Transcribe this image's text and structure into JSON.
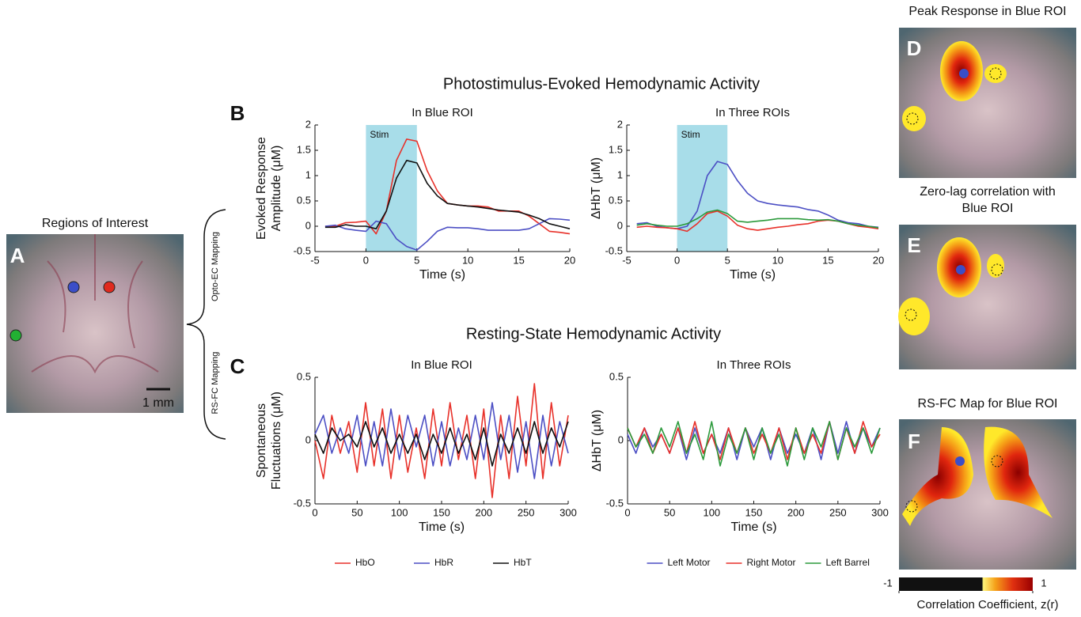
{
  "figure": {
    "evoked_heading": "Photostimulus-Evoked Hemodynamic Activity",
    "resting_heading": "Resting-State Hemodynamic Activity",
    "panel_a": "A",
    "panel_b": "B",
    "panel_c": "C",
    "panel_d": "D",
    "panel_e": "E",
    "panel_f": "F",
    "roi_title": "Regions of Interest",
    "scale": "1 mm",
    "opto_label": "Opto-EC Mapping",
    "rs_label": "RS-FC Mapping",
    "d_title": "Peak Response in Blue ROI",
    "e_title": [
      "Zero-lag correlation with",
      "Blue ROI"
    ],
    "f_title": "RS-FC Map for Blue ROI",
    "colorbar": {
      "label": "Correlation Coefficient, z(r)",
      "lim": [
        -1,
        1
      ],
      "ticks": [
        -1,
        1
      ]
    }
  },
  "chart_data": [
    {
      "type": "line",
      "title": "In Blue ROI",
      "xlabel": "Time (s)",
      "ylabel": [
        "Evoked Response",
        "Amplitude (μM)"
      ],
      "x": [
        -4,
        -3,
        -2,
        -1,
        0,
        1,
        2,
        3,
        4,
        5,
        6,
        7,
        8,
        9,
        10,
        11,
        12,
        13,
        14,
        15,
        16,
        17,
        18,
        19,
        20
      ],
      "xlim": [
        -5,
        20
      ],
      "xticks": [
        -5,
        0,
        5,
        10,
        15,
        20
      ],
      "ylim": [
        -0.5,
        2
      ],
      "yticks": [
        -0.5,
        0,
        0.5,
        1,
        1.5,
        2
      ],
      "shade": {
        "range": [
          0,
          5
        ],
        "label": "Stim",
        "color": "#a8dde9"
      },
      "series": [
        {
          "name": "HbO",
          "color": "#e8312a",
          "values": [
            0,
            0,
            0.07,
            0.08,
            0.1,
            -0.15,
            0.3,
            1.3,
            1.72,
            1.68,
            1.1,
            0.7,
            0.45,
            0.42,
            0.4,
            0.4,
            0.38,
            0.3,
            0.3,
            0.3,
            0.2,
            0.05,
            -0.1,
            -0.12,
            -0.15
          ]
        },
        {
          "name": "HbR",
          "color": "#4c4fc4",
          "values": [
            0,
            0.02,
            -0.05,
            -0.08,
            -0.1,
            0.1,
            0.05,
            -0.25,
            -0.4,
            -0.47,
            -0.3,
            -0.1,
            -0.02,
            -0.03,
            -0.03,
            -0.05,
            -0.08,
            -0.08,
            -0.08,
            -0.08,
            -0.05,
            0.05,
            0.15,
            0.14,
            0.12
          ]
        },
        {
          "name": "HbT",
          "color": "#111111",
          "values": [
            -0.02,
            -0.02,
            0.03,
            0,
            0,
            -0.05,
            0.3,
            0.95,
            1.3,
            1.25,
            0.85,
            0.6,
            0.45,
            0.42,
            0.4,
            0.38,
            0.35,
            0.32,
            0.3,
            0.28,
            0.22,
            0.15,
            0.05,
            0,
            -0.05
          ]
        }
      ],
      "legend": false
    },
    {
      "type": "line",
      "title": "In Three ROIs",
      "xlabel": "Time (s)",
      "ylabel": [
        "ΔHbT (μM)"
      ],
      "x": [
        -4,
        -3,
        -2,
        -1,
        0,
        1,
        2,
        3,
        4,
        5,
        6,
        7,
        8,
        9,
        10,
        11,
        12,
        13,
        14,
        15,
        16,
        17,
        18,
        19,
        20
      ],
      "xlim": [
        -5,
        20
      ],
      "xticks": [
        -5,
        0,
        5,
        10,
        15,
        20
      ],
      "ylim": [
        -0.5,
        2
      ],
      "yticks": [
        -0.5,
        0,
        0.5,
        1,
        1.5,
        2
      ],
      "shade": {
        "range": [
          0,
          5
        ],
        "label": "Stim",
        "color": "#a8dde9"
      },
      "series": [
        {
          "name": "Left Motor",
          "color": "#4c4fc4",
          "values": [
            0.05,
            0.07,
            0,
            -0.03,
            -0.05,
            0,
            0.3,
            1,
            1.28,
            1.22,
            0.9,
            0.65,
            0.5,
            0.45,
            0.42,
            0.4,
            0.38,
            0.33,
            0.3,
            0.22,
            0.12,
            0.07,
            0.05,
            0,
            -0.02
          ]
        },
        {
          "name": "Right Motor",
          "color": "#e8312a",
          "values": [
            -0.02,
            0,
            -0.02,
            -0.03,
            -0.05,
            -0.1,
            0.05,
            0.25,
            0.3,
            0.2,
            0.02,
            -0.05,
            -0.08,
            -0.05,
            -0.02,
            0,
            0.03,
            0.05,
            0.1,
            0.12,
            0.1,
            0.05,
            0,
            -0.02,
            -0.05
          ]
        },
        {
          "name": "Left Barrel",
          "color": "#2c9a3c",
          "values": [
            0.02,
            0.05,
            0.02,
            0,
            0,
            0.05,
            0.15,
            0.28,
            0.32,
            0.25,
            0.1,
            0.08,
            0.1,
            0.12,
            0.15,
            0.15,
            0.15,
            0.13,
            0.12,
            0.13,
            0.1,
            0.05,
            0.02,
            0,
            -0.03
          ]
        }
      ],
      "legend": false
    },
    {
      "type": "line",
      "title": "In Blue ROI",
      "xlabel": "Time (s)",
      "ylabel": [
        "Spontaneous",
        "Fluctuations (μM)"
      ],
      "x": [
        0,
        10,
        20,
        30,
        40,
        50,
        60,
        70,
        80,
        90,
        100,
        110,
        120,
        130,
        140,
        150,
        160,
        170,
        180,
        190,
        200,
        210,
        220,
        230,
        240,
        250,
        260,
        270,
        280,
        290,
        300
      ],
      "xlim": [
        0,
        300
      ],
      "xticks": [
        0,
        50,
        100,
        150,
        200,
        250,
        300
      ],
      "ylim": [
        -0.5,
        0.5
      ],
      "yticks": [
        -0.5,
        0,
        0.5
      ],
      "series": [
        {
          "name": "HbO",
          "color": "#e8312a",
          "values": [
            0,
            -0.3,
            0.2,
            -0.1,
            0.15,
            -0.25,
            0.3,
            -0.2,
            0.25,
            -0.3,
            0.2,
            -0.25,
            0.1,
            -0.3,
            0.25,
            -0.2,
            0.3,
            -0.15,
            0.2,
            -0.3,
            0.25,
            -0.45,
            0.2,
            -0.3,
            0.35,
            -0.2,
            0.45,
            -0.3,
            0.3,
            -0.2,
            0.2
          ]
        },
        {
          "name": "HbR",
          "color": "#4c4fc4",
          "values": [
            0.05,
            0.2,
            -0.1,
            0.1,
            -0.1,
            0.2,
            -0.2,
            0.15,
            -0.2,
            0.25,
            -0.15,
            0.2,
            -0.05,
            0.2,
            -0.2,
            0.15,
            -0.2,
            0.1,
            -0.15,
            0.2,
            -0.15,
            0.3,
            -0.15,
            0.2,
            -0.25,
            0.15,
            -0.3,
            0.2,
            -0.2,
            0.15,
            -0.1
          ]
        },
        {
          "name": "HbT",
          "color": "#111111",
          "values": [
            0.05,
            -0.1,
            0.1,
            0,
            0.05,
            -0.05,
            0.15,
            -0.05,
            0.1,
            -0.1,
            0.05,
            -0.1,
            0.05,
            -0.15,
            0.05,
            -0.1,
            0.1,
            -0.1,
            0.05,
            -0.15,
            0.1,
            -0.2,
            0.05,
            -0.1,
            0.1,
            -0.1,
            0.15,
            -0.1,
            0.1,
            -0.05,
            0.15
          ]
        }
      ],
      "legend": "bottom"
    },
    {
      "type": "line",
      "title": "In Three ROIs",
      "xlabel": "Time (s)",
      "ylabel": [
        "ΔHbT (μM)"
      ],
      "x": [
        0,
        10,
        20,
        30,
        40,
        50,
        60,
        70,
        80,
        90,
        100,
        110,
        120,
        130,
        140,
        150,
        160,
        170,
        180,
        190,
        200,
        210,
        220,
        230,
        240,
        250,
        260,
        270,
        280,
        290,
        300
      ],
      "xlim": [
        0,
        300
      ],
      "xticks": [
        0,
        50,
        100,
        150,
        200,
        250,
        300
      ],
      "ylim": [
        -0.5,
        0.5
      ],
      "yticks": [
        -0.5,
        0,
        0.5
      ],
      "series": [
        {
          "name": "Left Motor",
          "color": "#4c4fc4",
          "values": [
            0.05,
            -0.1,
            0.1,
            -0.05,
            0.05,
            -0.1,
            0.1,
            -0.15,
            0.1,
            -0.1,
            0.05,
            -0.1,
            0.1,
            -0.15,
            0.1,
            -0.05,
            0.1,
            -0.15,
            0.1,
            -0.1,
            0.05,
            -0.1,
            0.1,
            -0.15,
            0.15,
            -0.1,
            0.15,
            -0.1,
            0.1,
            -0.05,
            0.1
          ]
        },
        {
          "name": "Right Motor",
          "color": "#e8312a",
          "values": [
            0.1,
            -0.05,
            0.1,
            -0.1,
            0.05,
            -0.1,
            0.1,
            -0.1,
            0.15,
            -0.1,
            0.05,
            -0.15,
            0.1,
            -0.1,
            0.1,
            -0.1,
            0.05,
            -0.1,
            0.1,
            -0.15,
            0.1,
            -0.1,
            0.05,
            -0.1,
            0.15,
            -0.15,
            0.1,
            -0.1,
            0.15,
            -0.05,
            0.05
          ]
        },
        {
          "name": "Left Barrel",
          "color": "#2c9a3c",
          "values": [
            0.1,
            -0.05,
            0.05,
            -0.1,
            0.1,
            -0.05,
            0.15,
            -0.1,
            0.05,
            -0.15,
            0.15,
            -0.2,
            0.05,
            -0.1,
            0.1,
            -0.15,
            0.1,
            -0.1,
            0.05,
            -0.2,
            0.1,
            -0.15,
            0.1,
            -0.05,
            0.15,
            -0.15,
            0.1,
            -0.05,
            0.1,
            -0.1,
            0.1
          ]
        }
      ],
      "legend": "bottom"
    }
  ]
}
